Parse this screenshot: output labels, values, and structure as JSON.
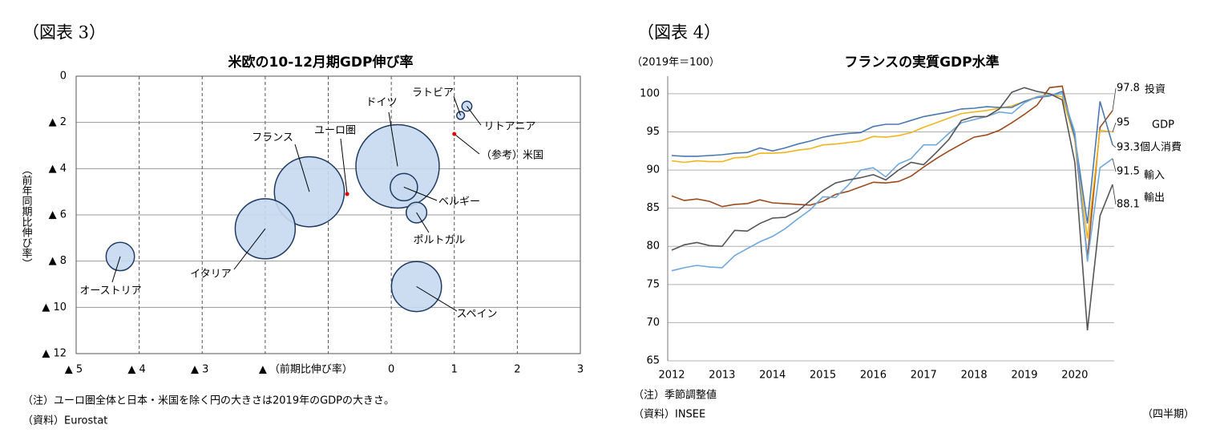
{
  "chart_data": [
    {
      "type": "bubble",
      "header": "（図表 3）",
      "title": "米欧の10-12月期GDP伸び率",
      "x_label": "（前期比伸び率）",
      "y_label": "（前年同期比伸び率）",
      "xlim": [
        -5,
        3
      ],
      "xticks": [
        {
          "value": -5,
          "label": "▲ 5"
        },
        {
          "value": -4,
          "label": "▲ 4"
        },
        {
          "value": -3,
          "label": "▲ 3"
        },
        {
          "value": -2,
          "label": "▲"
        },
        {
          "value": -1
        },
        0,
        1,
        2,
        3
      ],
      "ylim": [
        -12,
        0
      ],
      "yticks": [
        0,
        {
          "value": -2,
          "label": "▲ 2"
        },
        {
          "value": -4,
          "label": "▲ 4"
        },
        {
          "value": -6,
          "label": "▲ 6"
        },
        {
          "value": -8,
          "label": "▲ 8"
        },
        {
          "value": -10,
          "label": "▲ 10"
        },
        {
          "value": -12,
          "label": "▲ 12"
        }
      ],
      "color": "#c6d9f0",
      "points": [
        {
          "label": "ドイツ",
          "x": 0.1,
          "y": -3.9,
          "size": 3.45
        },
        {
          "label": "フランス",
          "x": -1.3,
          "y": -5.0,
          "size": 2.43
        },
        {
          "label": "イタリア",
          "x": -2.0,
          "y": -6.6,
          "size": 1.79
        },
        {
          "label": "スペイン",
          "x": 0.4,
          "y": -9.1,
          "size": 1.24
        },
        {
          "label": "ベルギー",
          "x": 0.2,
          "y": -4.8,
          "size": 0.37
        },
        {
          "label": "ポルトガル",
          "x": 0.4,
          "y": -5.9,
          "size": 0.21
        },
        {
          "label": "オーストリア",
          "x": -4.3,
          "y": -7.8,
          "size": 0.4
        },
        {
          "label": "ラトビア",
          "x": 1.1,
          "y": -1.7,
          "size": 0.03
        },
        {
          "label": "リトアニア",
          "x": 1.2,
          "y": -1.3,
          "size": 0.049
        }
      ],
      "reference_color": "#e00000",
      "reference_points": [
        {
          "label": "ユーロ圏",
          "x": -0.7,
          "y": -5.1
        },
        {
          "label": "（参考）米国",
          "x": 1.0,
          "y": -2.5
        }
      ],
      "notes": [
        "（注）ユーロ圏全体と日本・米国を除く円の大きさは2019年のGDPの大きさ。",
        "（資料）Eurostat"
      ]
    },
    {
      "type": "line",
      "header": "（図表 4）",
      "title": "フランスの実質GDP水準",
      "y_label": "（2019年＝100）",
      "x_unit": "（四半期）",
      "categories": [
        "2012",
        null,
        null,
        null,
        "2013",
        null,
        null,
        null,
        "2014",
        null,
        null,
        null,
        "2015",
        null,
        null,
        null,
        "2016",
        null,
        null,
        null,
        "2017",
        null,
        null,
        null,
        "2018",
        null,
        null,
        null,
        "2019",
        null,
        null,
        null,
        "2020",
        null,
        null,
        null
      ],
      "ylim": [
        65,
        102.3
      ],
      "yticks": [
        65,
        70,
        75,
        80,
        85,
        90,
        95,
        100
      ],
      "grid": true,
      "series": [
        {
          "name": "投資",
          "color": "#9c4a1c",
          "values": [
            86.6,
            86.0,
            86.2,
            85.9,
            85.2,
            85.5,
            85.6,
            86.1,
            85.7,
            85.6,
            85.5,
            85.4,
            85.9,
            86.8,
            87.2,
            87.8,
            88.4,
            88.3,
            88.5,
            89.2,
            90.4,
            91.5,
            92.5,
            93.4,
            94.3,
            94.6,
            95.2,
            96.2,
            97.3,
            98.5,
            100.8,
            101.0,
            94.0,
            78.5,
            95.6,
            97.8
          ]
        },
        {
          "name": "GDP",
          "color": "#f2b51c",
          "values": [
            91.2,
            91.0,
            91.2,
            91.1,
            91.1,
            91.6,
            91.7,
            92.2,
            92.2,
            92.3,
            92.6,
            92.8,
            93.3,
            93.4,
            93.6,
            93.8,
            94.4,
            94.3,
            94.5,
            94.9,
            95.6,
            96.2,
            96.8,
            97.4,
            97.6,
            97.8,
            98.1,
            98.4,
            99.0,
            99.6,
            99.9,
            99.6,
            94.0,
            81.0,
            95.2,
            95.0
          ]
        },
        {
          "name": "個人消費",
          "color": "#4a78b0",
          "values": [
            91.9,
            91.8,
            91.8,
            91.9,
            92.0,
            92.2,
            92.3,
            92.9,
            92.5,
            92.9,
            93.4,
            93.8,
            94.3,
            94.6,
            94.8,
            94.9,
            95.7,
            96.0,
            96.0,
            96.5,
            97.0,
            97.3,
            97.6,
            98.0,
            98.1,
            98.3,
            98.2,
            98.2,
            99.0,
            99.5,
            99.7,
            100.3,
            94.3,
            83.0,
            99.0,
            93.3
          ]
        },
        {
          "name": "輸入",
          "color": "#6fa8dc",
          "values": [
            76.8,
            77.2,
            77.5,
            77.3,
            77.2,
            78.8,
            79.7,
            80.6,
            81.3,
            82.3,
            83.6,
            84.8,
            86.5,
            86.4,
            88.0,
            90.0,
            90.3,
            89.1,
            90.8,
            91.5,
            93.3,
            93.3,
            94.8,
            96.2,
            96.6,
            97.0,
            97.6,
            97.4,
            98.8,
            99.6,
            99.8,
            100.0,
            95.0,
            78.0,
            90.3,
            91.5
          ]
        },
        {
          "name": "輸出",
          "color": "#555555",
          "values": [
            79.5,
            80.2,
            80.5,
            80.1,
            80.0,
            82.1,
            82.0,
            83.0,
            83.7,
            83.8,
            84.6,
            86.0,
            87.3,
            88.3,
            88.7,
            89.0,
            89.4,
            88.7,
            90.0,
            91.0,
            90.7,
            92.3,
            94.0,
            96.5,
            97.0,
            97.0,
            98.0,
            100.2,
            100.8,
            100.3,
            100.0,
            99.2,
            91.0,
            69.0,
            84.0,
            88.1
          ]
        }
      ],
      "notes": [
        "（注）季節調整値",
        "（資料）INSEE"
      ]
    }
  ]
}
